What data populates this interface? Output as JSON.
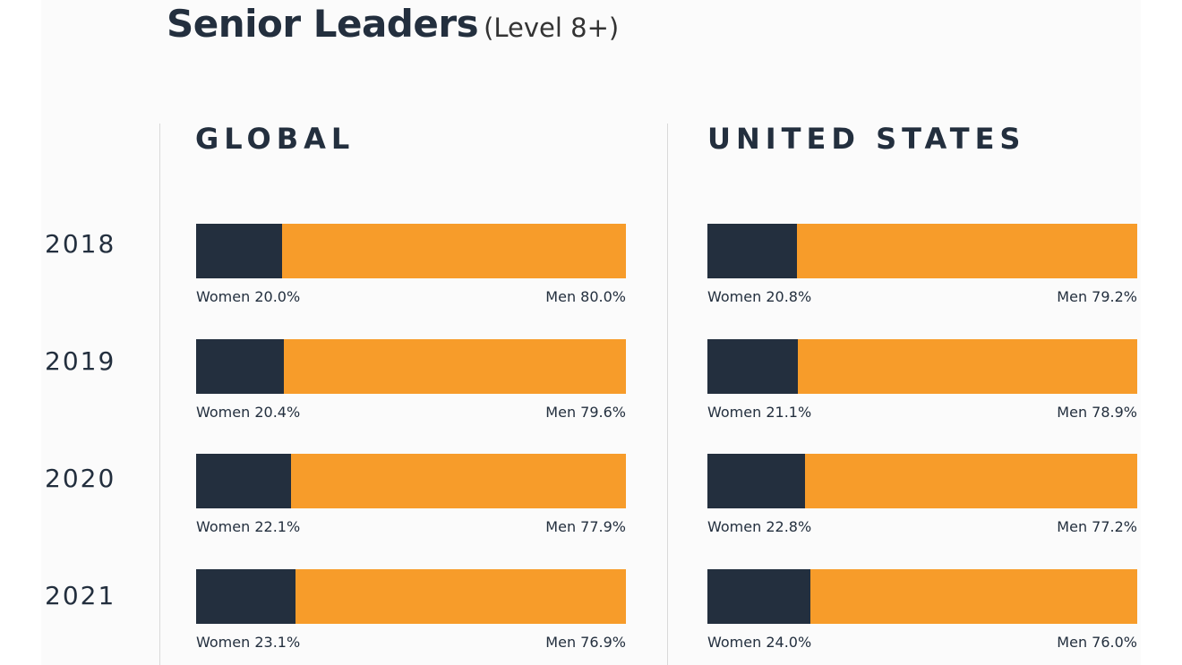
{
  "title": "Senior Leaders",
  "subtitle": "(Level 8+)",
  "chart_data": {
    "type": "bar",
    "orientation": "horizontal-stacked-100",
    "categories": [
      "2018",
      "2019",
      "2020",
      "2021"
    ],
    "colors": {
      "women": "#232f3e",
      "men": "#f79c2a"
    },
    "regions": [
      {
        "name": "GLOBAL",
        "rows": [
          {
            "year": "2018",
            "women": 20.0,
            "men": 80.0,
            "women_label": "Women 20.0%",
            "men_label": "Men 80.0%"
          },
          {
            "year": "2019",
            "women": 20.4,
            "men": 79.6,
            "women_label": "Women 20.4%",
            "men_label": "Men 79.6%"
          },
          {
            "year": "2020",
            "women": 22.1,
            "men": 77.9,
            "women_label": "Women 22.1%",
            "men_label": "Men 77.9%"
          },
          {
            "year": "2021",
            "women": 23.1,
            "men": 76.9,
            "women_label": "Women 23.1%",
            "men_label": "Men 76.9%"
          }
        ]
      },
      {
        "name": "UNITED STATES",
        "rows": [
          {
            "year": "2018",
            "women": 20.8,
            "men": 79.2,
            "women_label": "Women 20.8%",
            "men_label": "Men 79.2%"
          },
          {
            "year": "2019",
            "women": 21.1,
            "men": 78.9,
            "women_label": "Women 21.1%",
            "men_label": "Men 78.9%"
          },
          {
            "year": "2020",
            "women": 22.8,
            "men": 77.2,
            "women_label": "Women 22.8%",
            "men_label": "Men 77.2%"
          },
          {
            "year": "2021",
            "women": 24.0,
            "men": 76.0,
            "women_label": "Women 24.0%",
            "men_label": "Men 76.0%"
          }
        ]
      }
    ]
  }
}
